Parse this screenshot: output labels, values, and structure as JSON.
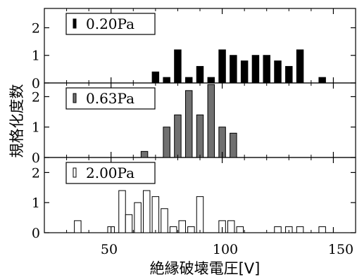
{
  "chart_data": {
    "type": "bar",
    "xlabel": "絶縁破壊電圧[V]",
    "ylabel": "規格化度数",
    "xlim": [
      20,
      160
    ],
    "xticks": [
      50,
      100,
      150
    ],
    "bin_width": 3,
    "panels": [
      {
        "legend": "0.20Pa",
        "fill": "#000000",
        "ylim": [
          0,
          2.7
        ],
        "yticks": [
          0,
          1,
          2
        ],
        "x": [
          70,
          75,
          80,
          85,
          90,
          95,
          100,
          105,
          110,
          115,
          120,
          125,
          130,
          135,
          145
        ],
        "values": [
          0.4,
          0.2,
          1.2,
          0.2,
          0.6,
          0.2,
          1.2,
          1.0,
          0.8,
          1.0,
          1.0,
          0.8,
          0.6,
          1.2,
          0.2
        ]
      },
      {
        "legend": "0.63Pa",
        "fill": "#707070",
        "ylim": [
          0,
          2.45
        ],
        "yticks": [
          0,
          1,
          2
        ],
        "x": [
          65,
          75,
          80,
          85,
          90,
          95,
          100,
          105
        ],
        "values": [
          0.2,
          1.0,
          1.4,
          2.2,
          1.4,
          2.4,
          1.0,
          0.8
        ]
      },
      {
        "legend": "2.00Pa",
        "fill": "#ffffff",
        "ylim": [
          0,
          2.5
        ],
        "yticks": [
          0,
          1,
          2
        ],
        "x": [
          35,
          50,
          55,
          58,
          62,
          66,
          70,
          74,
          78,
          82,
          86,
          90,
          100,
          104,
          108,
          112,
          125,
          130,
          135,
          140,
          145,
          150
        ],
        "values": [
          0.4,
          0.2,
          1.4,
          0.6,
          1.0,
          1.4,
          1.2,
          0.8,
          0.2,
          0.4,
          0.2,
          1.2,
          0.4,
          0.4,
          0.2,
          0.0,
          0.2,
          0.2,
          0.2,
          0.0,
          0.2,
          0.0
        ]
      }
    ]
  }
}
